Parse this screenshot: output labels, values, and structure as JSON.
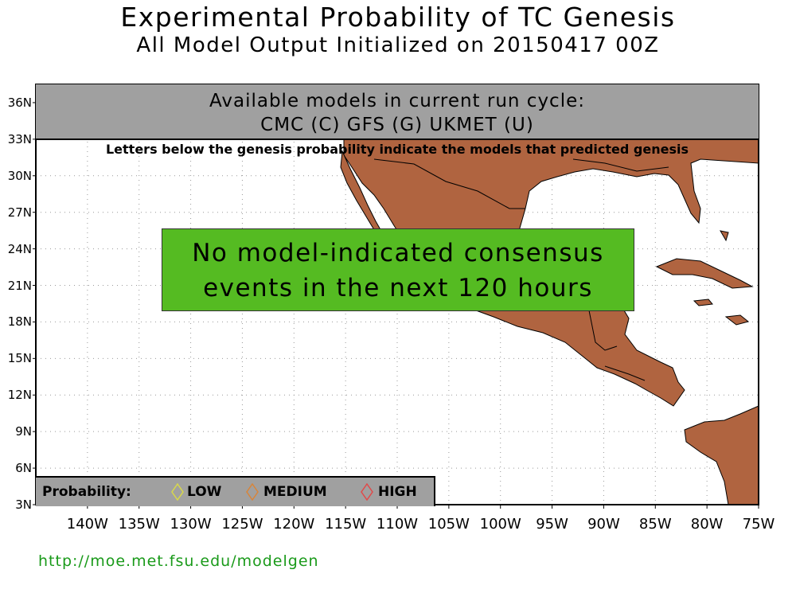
{
  "title": "Experimental Probability of TC Genesis",
  "subtitle": "All Model Output Initialized on 20150417 00Z",
  "available_models": {
    "heading": "Available models in current run cycle:",
    "list": "CMC (C) GFS (G)  UKMET (U)"
  },
  "letters_note": "Letters below the genesis probability indicate the models that predicted genesis",
  "message": {
    "line1": "No model-indicated consensus",
    "line2": "events in the next 120 hours"
  },
  "legend": {
    "title": "Probability:",
    "low": "LOW",
    "medium": "MEDIUM",
    "high": "HIGH",
    "low_color": "#d8d84a",
    "medium_color": "#d8853a",
    "high_color": "#e04a4a"
  },
  "lat_labels": [
    "36N",
    "33N",
    "30N",
    "27N",
    "24N",
    "21N",
    "18N",
    "15N",
    "12N",
    "9N",
    "6N",
    "3N"
  ],
  "lon_labels": [
    "140W",
    "135W",
    "130W",
    "125W",
    "120W",
    "115W",
    "110W",
    "105W",
    "100W",
    "95W",
    "90W",
    "85W",
    "80W",
    "75W"
  ],
  "url": "http://moe.met.fsu.edu/modelgen",
  "colors": {
    "land": "#b06440",
    "ocean": "#ffffff",
    "message_bg": "#55bb22",
    "panel": "#a0a0a0"
  }
}
